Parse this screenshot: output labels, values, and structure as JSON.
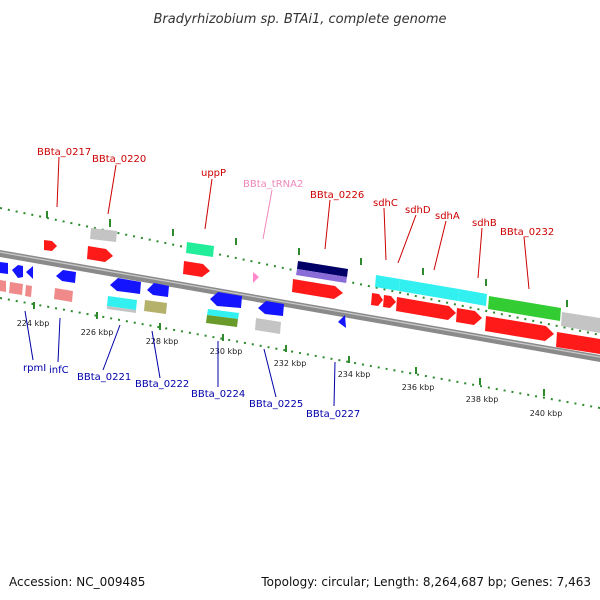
{
  "title": "Bradyrhizobium sp. BTAi1, complete genome",
  "footer": {
    "accession": "Accession: NC_009485",
    "summary": "Topology: circular; Length: 8,264,687 bp; Genes: 7,463"
  },
  "colors": {
    "backbone": "#8a8a8a",
    "tick": "#2d8a2d",
    "label_above": "#cc0000",
    "label_trna": "#ee88bb",
    "label_below": "#0000aa",
    "red": "#ff1a1a",
    "blue": "#1414ff",
    "gray": "#c4c4c4",
    "salmon": "#f08a8a",
    "cyan": "#33f0f0",
    "green": "#33cc33",
    "teal": "#22ee99",
    "olive": "#b5b06a",
    "navy": "#000066",
    "purple": "#8a6cd8",
    "pink": "#ff88cc"
  },
  "kbp_ticks": [
    "224 kbp",
    "226 kbp",
    "228 kbp",
    "230 kbp",
    "232 kbp",
    "234 kbp",
    "236 kbp",
    "238 kbp",
    "240 kbp"
  ],
  "labels_above": [
    {
      "name": "BBta_0217",
      "kind": "cds"
    },
    {
      "name": "BBta_0220",
      "kind": "cds"
    },
    {
      "name": "uppP",
      "kind": "cds"
    },
    {
      "name": "BBta_tRNA2",
      "kind": "trna"
    },
    {
      "name": "BBta_0226",
      "kind": "cds"
    },
    {
      "name": "sdhC",
      "kind": "cds"
    },
    {
      "name": "sdhD",
      "kind": "cds"
    },
    {
      "name": "sdhA",
      "kind": "cds"
    },
    {
      "name": "sdhB",
      "kind": "cds"
    },
    {
      "name": "BBta_0232",
      "kind": "cds"
    }
  ],
  "labels_below": [
    {
      "name": "rpmI"
    },
    {
      "name": "infC"
    },
    {
      "name": "BBta_0221"
    },
    {
      "name": "BBta_0222"
    },
    {
      "name": "BBta_0224"
    },
    {
      "name": "BBta_0225"
    },
    {
      "name": "BBta_0227"
    }
  ]
}
